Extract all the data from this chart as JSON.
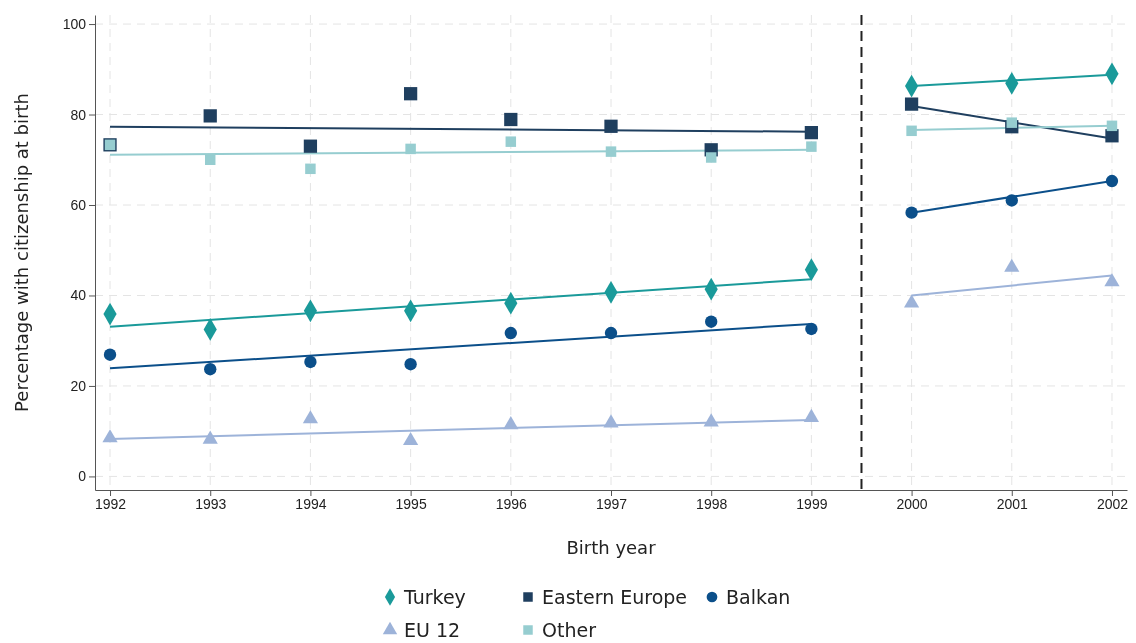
{
  "chart_data": {
    "type": "scatter",
    "xlabel": "Birth year",
    "ylabel": "Percentage with citizenship at birth",
    "xlim": [
      1991.85,
      2002.15
    ],
    "ylim": [
      -3,
      102
    ],
    "xticks": [
      1992,
      1993,
      1994,
      1995,
      1996,
      1997,
      1998,
      1999,
      2000,
      2001,
      2002
    ],
    "yticks": [
      0,
      20,
      40,
      60,
      80,
      100
    ],
    "grid": true,
    "legend": "bottom",
    "ref_lines": [
      {
        "axis": "x",
        "value": 1999.5,
        "color": "#222222",
        "line_style": "dashed"
      }
    ],
    "series": [
      {
        "name": "Turkey",
        "marker": "diamond",
        "color": "#1a9a9a",
        "x": [
          1992,
          1993,
          1994,
          1995,
          1996,
          1997,
          1998,
          1999,
          2000,
          2001,
          2002
        ],
        "values": [
          35.9,
          32.5,
          36.6,
          36.6,
          38.3,
          40.7,
          41.4,
          45.7,
          86.3,
          86.9,
          89.0
        ]
      },
      {
        "name": "Eastern Europe",
        "marker": "square",
        "color": "#1f3f5f",
        "x": [
          1992,
          1993,
          1994,
          1995,
          1996,
          1997,
          1998,
          1999,
          2000,
          2001,
          2002
        ],
        "values": [
          73.3,
          79.7,
          73.0,
          84.6,
          78.9,
          77.4,
          72.2,
          76.0,
          82.3,
          77.3,
          75.3
        ]
      },
      {
        "name": "Balkan",
        "marker": "circle",
        "color": "#0b4f8a",
        "x": [
          1992,
          1993,
          1994,
          1995,
          1996,
          1997,
          1998,
          1999,
          2000,
          2001,
          2002
        ],
        "values": [
          26.9,
          23.7,
          25.3,
          24.8,
          31.7,
          31.7,
          34.2,
          32.6,
          58.3,
          61.0,
          65.3
        ]
      },
      {
        "name": "EU 12",
        "marker": "triangle",
        "color": "#9db3d9",
        "x": [
          1992,
          1993,
          1994,
          1995,
          1996,
          1997,
          1998,
          1999,
          2000,
          2001,
          2002
        ],
        "values": [
          8.5,
          8.2,
          12.7,
          7.9,
          11.4,
          11.8,
          12.0,
          13.0,
          38.3,
          46.2,
          43.0
        ]
      },
      {
        "name": "Other",
        "marker": "square",
        "color": "#96cdd0",
        "x": [
          1992,
          1993,
          1994,
          1995,
          1996,
          1997,
          1998,
          1999,
          2000,
          2001,
          2002
        ],
        "values": [
          73.3,
          70.0,
          68.0,
          72.4,
          74.0,
          71.8,
          70.5,
          72.9,
          76.4,
          78.2,
          77.5
        ]
      },
      {
        "type": "line",
        "color": "#1a9a9a",
        "x": [
          1992,
          1999
        ],
        "values": [
          33.1,
          43.6
        ]
      },
      {
        "type": "line",
        "color": "#1f3f5f",
        "x": [
          1992,
          1999
        ],
        "values": [
          77.3,
          76.2
        ]
      },
      {
        "type": "line",
        "color": "#0b4f8a",
        "x": [
          1992,
          1999
        ],
        "values": [
          23.9,
          33.7
        ]
      },
      {
        "type": "line",
        "color": "#9db3d9",
        "x": [
          1992,
          1999
        ],
        "values": [
          8.3,
          12.5
        ]
      },
      {
        "type": "line",
        "color": "#96cdd0",
        "x": [
          1992,
          1999
        ],
        "values": [
          71.1,
          72.2
        ]
      },
      {
        "type": "line",
        "color": "#1a9a9a",
        "x": [
          2000,
          2002
        ],
        "values": [
          86.3,
          88.8
        ]
      },
      {
        "type": "line",
        "color": "#1f3f5f",
        "x": [
          2000,
          2002
        ],
        "values": [
          81.9,
          74.7
        ]
      },
      {
        "type": "line",
        "color": "#0b4f8a",
        "x": [
          2000,
          2002
        ],
        "values": [
          58.3,
          65.3
        ]
      },
      {
        "type": "line",
        "color": "#9db3d9",
        "x": [
          2000,
          2002
        ],
        "values": [
          40.0,
          44.4
        ]
      },
      {
        "type": "line",
        "color": "#96cdd0",
        "x": [
          2000,
          2002
        ],
        "values": [
          76.6,
          77.5
        ]
      }
    ]
  }
}
